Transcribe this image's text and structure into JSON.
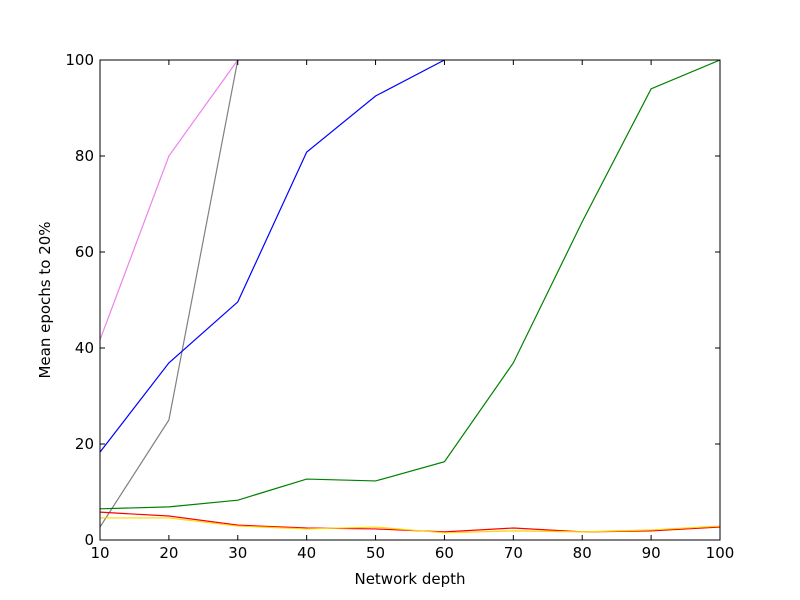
{
  "chart_data": {
    "type": "line",
    "x_label": "Network depth",
    "y_label": "Mean epochs to 20%",
    "x": [
      10,
      20,
      30,
      40,
      50,
      60,
      70,
      80,
      90,
      100
    ],
    "series": [
      {
        "color": "#ee82ee",
        "values": [
          41.7,
          80,
          100,
          null,
          null,
          null,
          null,
          null,
          null,
          null
        ]
      },
      {
        "color": "#808080",
        "values": [
          2.7,
          25,
          100,
          null,
          null,
          null,
          null,
          null,
          null,
          null
        ]
      },
      {
        "color": "#0000ff",
        "values": [
          18.3,
          36.9,
          49.6,
          80.8,
          92.5,
          100,
          null,
          null,
          null,
          null
        ]
      },
      {
        "color": "#008000",
        "values": [
          6.5,
          6.9,
          8.3,
          12.7,
          12.3,
          16.3,
          36.9,
          66.3,
          94,
          100
        ]
      },
      {
        "color": "#ff0000",
        "values": [
          5.8,
          5,
          3.1,
          2.5,
          2.3,
          1.7,
          2.5,
          1.7,
          1.9,
          2.7
        ]
      },
      {
        "color": "#ffd700",
        "values": [
          4.6,
          4.6,
          2.9,
          2.3,
          2.7,
          1.5,
          1.9,
          1.7,
          2.1,
          2.9
        ]
      }
    ],
    "xlim": [
      10,
      100
    ],
    "xticks": [
      10,
      20,
      30,
      40,
      50,
      60,
      70,
      80,
      90,
      100
    ],
    "ylim": [
      0,
      100
    ],
    "yticks": [
      0,
      20,
      40,
      60,
      80,
      100
    ]
  }
}
